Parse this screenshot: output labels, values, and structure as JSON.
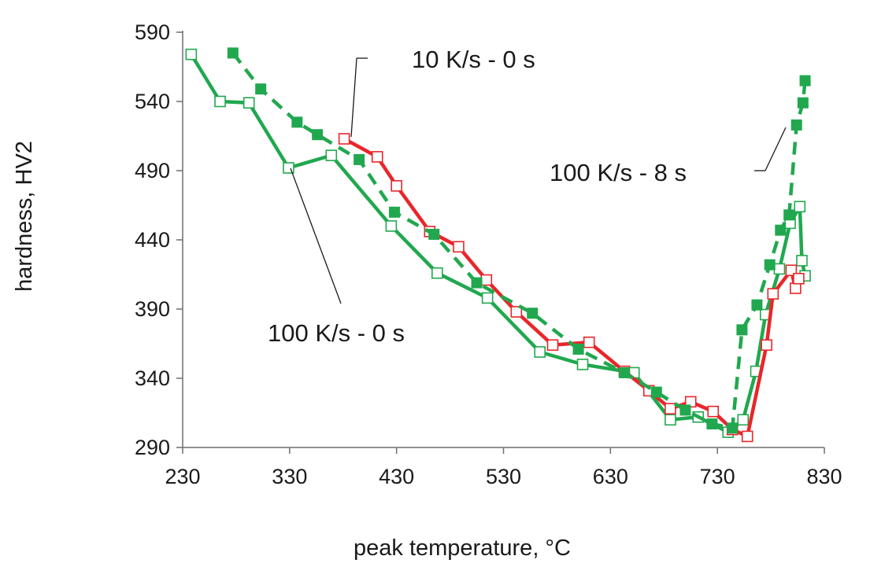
{
  "chart_data": {
    "type": "line",
    "title": "",
    "xlabel": "peak temperature, °C",
    "ylabel": "hardness, HV2",
    "xlim": [
      230,
      830
    ],
    "ylim": [
      290,
      590
    ],
    "xticks": [
      230,
      330,
      430,
      530,
      630,
      730,
      830
    ],
    "yticks": [
      290,
      340,
      390,
      440,
      490,
      540,
      590
    ],
    "grid": false,
    "colors": {
      "red": "#e8262a",
      "green": "#21a84f",
      "axis": "#6e6e6e",
      "text": "#1a1a1a"
    },
    "series": [
      {
        "name": "10 K/s - 0 s",
        "color": "#e8262a",
        "line_style": "solid",
        "marker": "open-square",
        "points": [
          [
            381,
            513
          ],
          [
            412,
            500
          ],
          [
            430,
            479
          ],
          [
            461,
            446
          ],
          [
            488,
            435
          ],
          [
            514,
            411
          ],
          [
            542,
            388
          ],
          [
            576,
            364
          ],
          [
            610,
            366
          ],
          [
            643,
            345
          ],
          [
            666,
            331
          ],
          [
            686,
            318
          ],
          [
            705,
            323
          ],
          [
            726,
            316
          ],
          [
            744,
            303
          ],
          [
            758,
            298
          ],
          [
            776,
            364
          ],
          [
            782,
            401
          ],
          [
            799,
            418
          ],
          [
            803,
            405
          ],
          [
            806,
            412
          ]
        ]
      },
      {
        "name": "100 K/s - 0 s",
        "color": "#21a84f",
        "line_style": "solid",
        "marker": "open-square",
        "points": [
          [
            238,
            574
          ],
          [
            265,
            540
          ],
          [
            292,
            539
          ],
          [
            329,
            492
          ],
          [
            369,
            501
          ],
          [
            425,
            450
          ],
          [
            468,
            416
          ],
          [
            515,
            398
          ],
          [
            564,
            359
          ],
          [
            604,
            350
          ],
          [
            652,
            344
          ],
          [
            686,
            310
          ],
          [
            712,
            312
          ],
          [
            740,
            301
          ],
          [
            754,
            310
          ],
          [
            766,
            345
          ],
          [
            775,
            386
          ],
          [
            788,
            419
          ],
          [
            798,
            452
          ],
          [
            807,
            464
          ],
          [
            809,
            425
          ],
          [
            812,
            414
          ]
        ]
      },
      {
        "name": "100 K/s - 8 s",
        "color": "#21a84f",
        "line_style": "dashed",
        "marker": "filled-square",
        "points": [
          [
            277,
            575
          ],
          [
            303,
            549
          ],
          [
            337,
            525
          ],
          [
            356,
            516
          ],
          [
            395,
            498
          ],
          [
            428,
            460
          ],
          [
            465,
            444
          ],
          [
            505,
            409
          ],
          [
            557,
            387
          ],
          [
            600,
            361
          ],
          [
            643,
            344
          ],
          [
            673,
            330
          ],
          [
            700,
            317
          ],
          [
            725,
            307
          ],
          [
            744,
            304
          ],
          [
            753,
            375
          ],
          [
            767,
            393
          ],
          [
            779,
            422
          ],
          [
            789,
            447
          ],
          [
            797,
            458
          ],
          [
            804,
            523
          ],
          [
            810,
            539
          ],
          [
            812,
            555
          ]
        ]
      }
    ],
    "annotations": [
      {
        "text": "10 K/s - 0 s",
        "series": "10 K/s - 0 s"
      },
      {
        "text": "100 K/s - 8 s",
        "series": "100 K/s - 8 s"
      },
      {
        "text": "100 K/s - 0 s",
        "series": "100 K/s - 0 s"
      }
    ]
  }
}
